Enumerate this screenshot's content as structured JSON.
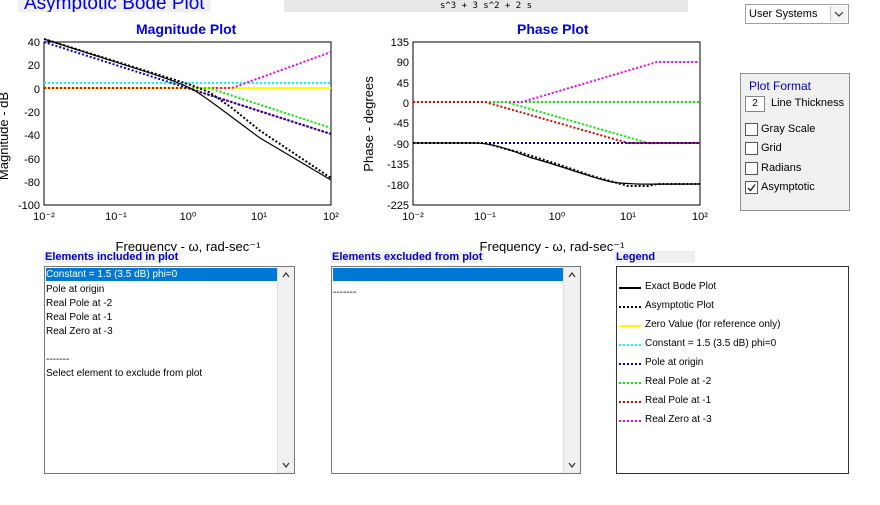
{
  "header": {
    "title": "Asymptotic Bode Plot",
    "transfer_function": "s^3 + 3 s^2 + 2 s",
    "system_select": "User Systems"
  },
  "magnitude_plot": {
    "title": "Magnitude Plot",
    "ylabel": "Magnitude - dB",
    "xlabel": "Frequency - ω, rad-sec⁻¹",
    "yticks": [
      "40",
      "20",
      "0",
      "-20",
      "-40",
      "-60",
      "-80",
      "-100"
    ],
    "xticks": [
      "10⁻²",
      "10⁻¹",
      "10⁰",
      "10¹",
      "10²"
    ]
  },
  "phase_plot": {
    "title": "Phase Plot",
    "ylabel": "Phase - degrees",
    "xlabel": "Frequency - ω, rad-sec⁻¹",
    "yticks": [
      "135",
      "90",
      "45",
      "0",
      "-45",
      "-90",
      "-135",
      "-180",
      "-225"
    ],
    "xticks": [
      "10⁻²",
      "10⁻¹",
      "10⁰",
      "10¹",
      "10²"
    ]
  },
  "plot_format": {
    "title": "Plot Format",
    "line_thickness_value": "2",
    "line_thickness_label": "Line Thickness",
    "options": [
      {
        "label": "Gray Scale",
        "checked": false
      },
      {
        "label": "Grid",
        "checked": false
      },
      {
        "label": "Radians",
        "checked": false
      },
      {
        "label": "Asymptotic",
        "checked": true
      }
    ]
  },
  "included": {
    "label": "Elements included in plot",
    "rows": [
      "Constant = 1.5 (3.5 dB) phi=0",
      "Pole at origin",
      "Real Pole at -2",
      "Real Pole at -1",
      "Real Zero at -3",
      "",
      "-------",
      "Select element to exclude from plot"
    ]
  },
  "excluded": {
    "label": "Elements excluded from plot",
    "rows": [
      "",
      "",
      "-------"
    ]
  },
  "legend": {
    "label": "Legend",
    "items": [
      {
        "label": "Exact Bode Plot",
        "color": "#000000",
        "style": "solid"
      },
      {
        "label": "Asymptotic Plot",
        "color": "#000000",
        "style": "dotted"
      },
      {
        "label": "Zero Value (for reference only)",
        "color": "#ffff00",
        "style": "solid"
      },
      {
        "label": "Constant = 1.5 (3.5 dB) phi=0",
        "color": "#00ffff",
        "style": "dotted"
      },
      {
        "label": "Pole at origin",
        "color": "#0000cc",
        "style": "dotted"
      },
      {
        "label": "Real Pole at -2",
        "color": "#00ee00",
        "style": "dotted"
      },
      {
        "label": "Real Pole at -1",
        "color": "#dd0000",
        "style": "dotted"
      },
      {
        "label": "Real Zero at -3",
        "color": "#ee00ee",
        "style": "dotted"
      }
    ]
  }
}
